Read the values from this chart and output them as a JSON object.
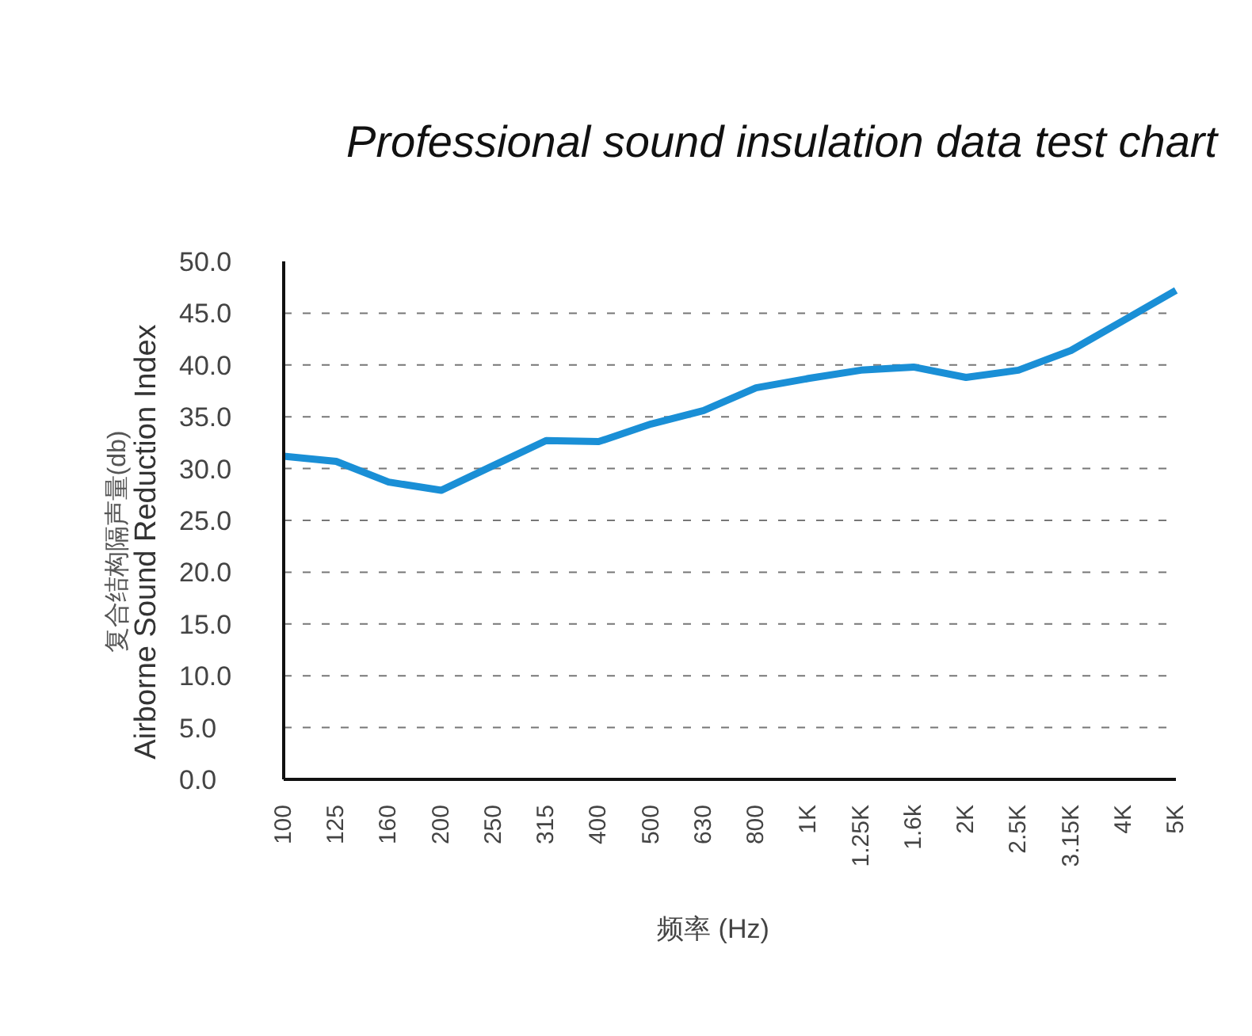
{
  "chart_data": {
    "type": "line",
    "title": "Professional sound insulation data test chart",
    "xlabel": "频率 (Hz)",
    "ylabel": "复合结构隔声量(db)\nAirborne Sound Reduction Index",
    "categories": [
      "100",
      "125",
      "160",
      "200",
      "250",
      "315",
      "400",
      "500",
      "630",
      "800",
      "1K",
      "1.25K",
      "1.6k",
      "2K",
      "2.5K",
      "3.15K",
      "4K",
      "5K"
    ],
    "series": [
      {
        "color": "#1a8fd6",
        "values": [
          31.2,
          30.7,
          28.7,
          27.9,
          30.3,
          32.7,
          32.6,
          34.3,
          35.6,
          37.8,
          38.7,
          39.5,
          39.8,
          38.8,
          39.5,
          41.4,
          44.3,
          47.2
        ]
      }
    ],
    "ylim": [
      0,
      50
    ],
    "yticks": [
      {
        "value": 0,
        "label": "0.0"
      },
      {
        "value": 5,
        "label": "5.0"
      },
      {
        "value": 10,
        "label": "10.0"
      },
      {
        "value": 15,
        "label": "15.0"
      },
      {
        "value": 20,
        "label": "20.0"
      },
      {
        "value": 25,
        "label": "25.0"
      },
      {
        "value": 30,
        "label": "30.0"
      },
      {
        "value": 35,
        "label": "35.0"
      },
      {
        "value": 40,
        "label": "40.0"
      },
      {
        "value": 45,
        "label": "45.0"
      },
      {
        "value": 50,
        "label": "50.0"
      }
    ],
    "grid": "y",
    "legend": false,
    "marker": "none",
    "line_style": "solid"
  }
}
